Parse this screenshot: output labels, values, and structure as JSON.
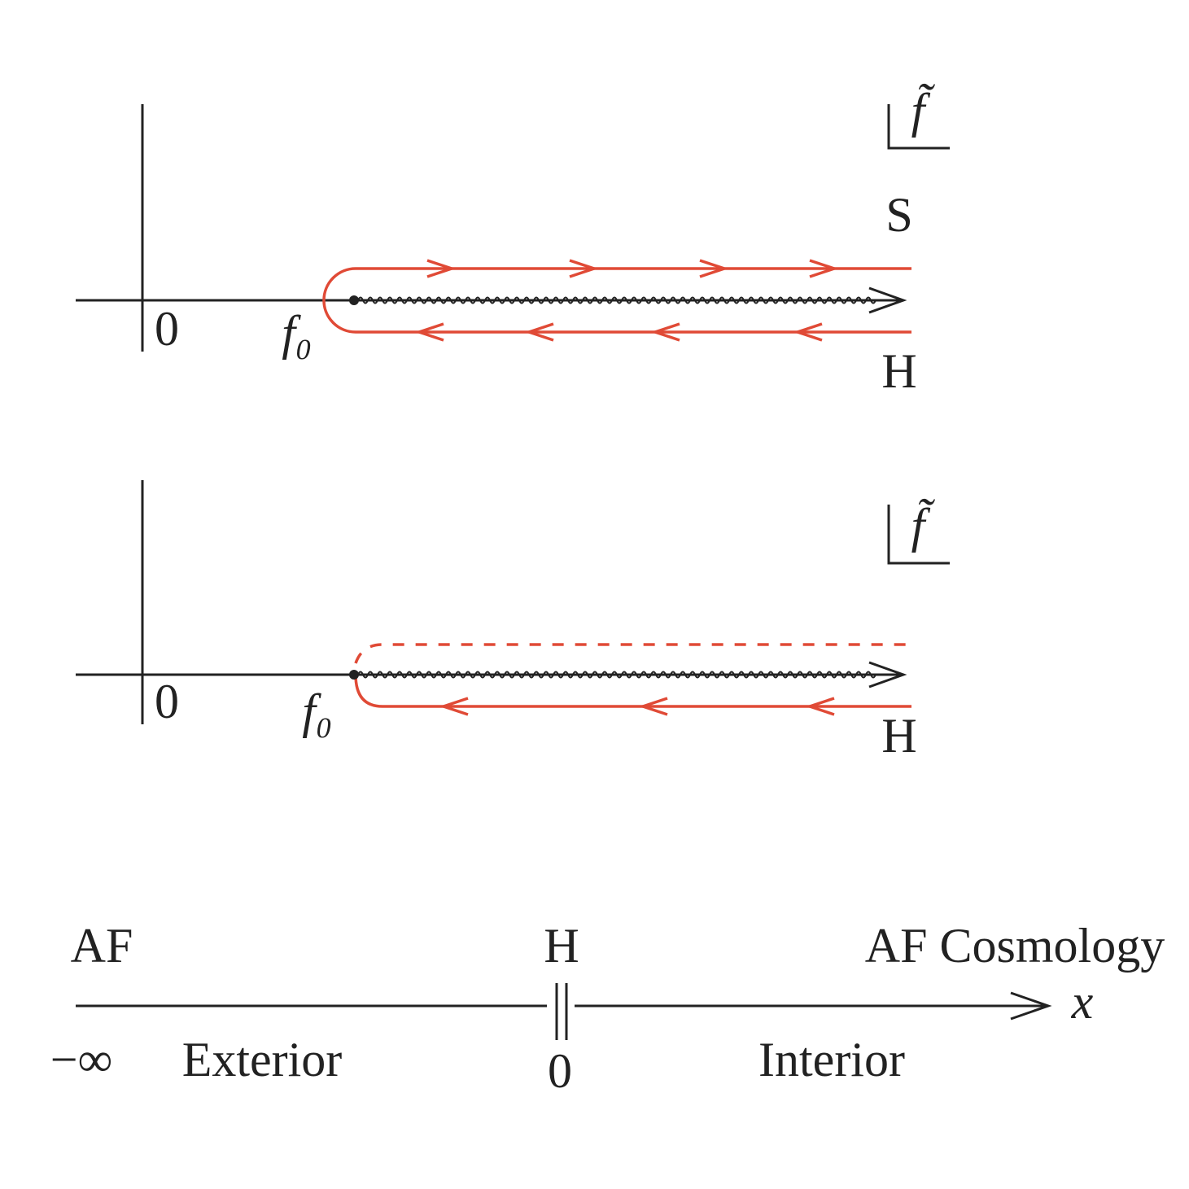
{
  "panels": [
    {
      "origin_label": "0",
      "branch_point_label": "f₀",
      "upper_label": "S",
      "lower_label": "H",
      "plane_label": "f̃"
    },
    {
      "origin_label": "0",
      "branch_point_label": "f₀",
      "lower_label": "H",
      "plane_label": "f̃"
    }
  ],
  "axis": {
    "left_label": "AF",
    "middle_label": "H",
    "right_label": "AF Cosmology",
    "variable_label": "x",
    "left_end_label": "−∞",
    "left_region_label": "Exterior",
    "middle_value_label": "0",
    "right_region_label": "Interior"
  }
}
